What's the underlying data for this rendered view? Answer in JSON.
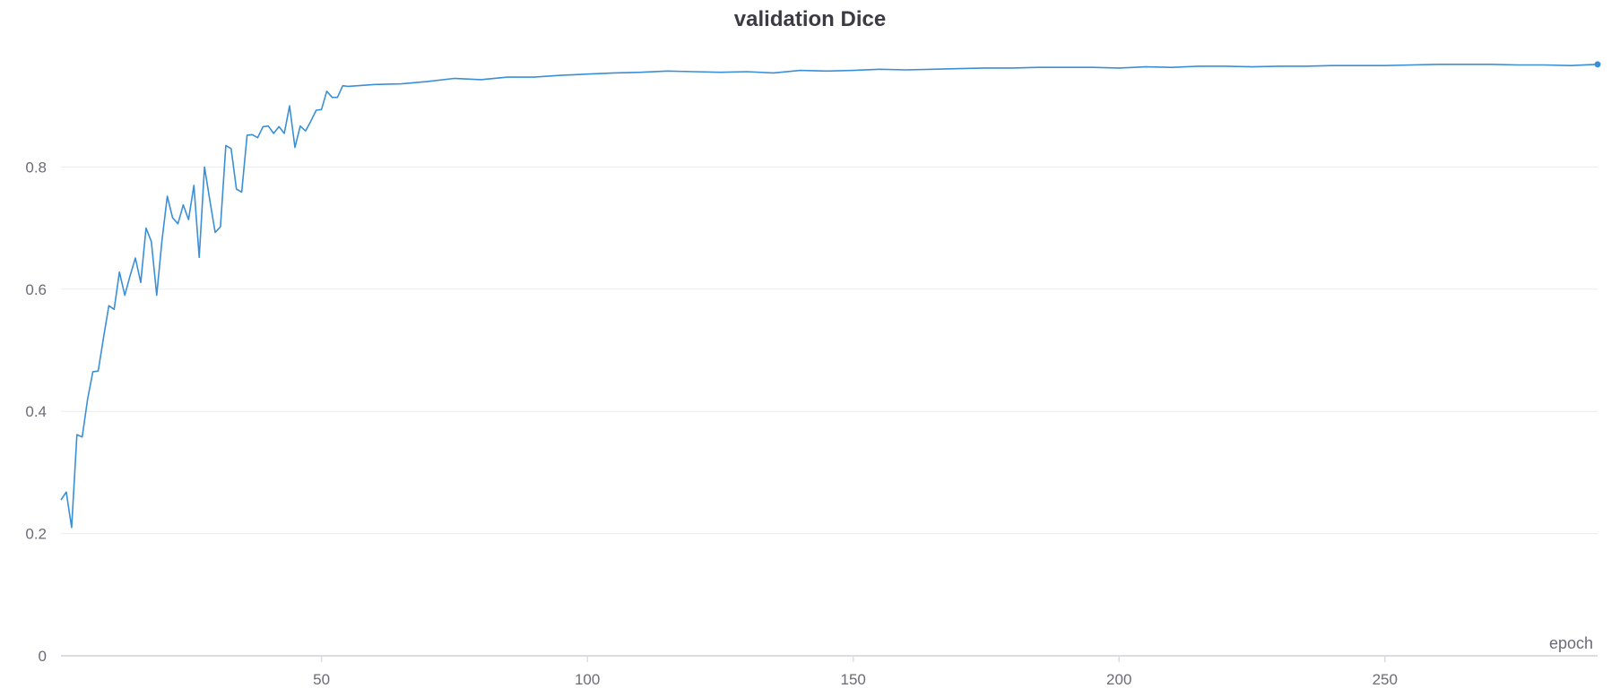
{
  "chart_data": {
    "type": "line",
    "title": "validation Dice",
    "xlabel": "epoch",
    "ylabel": "",
    "xlim": [
      1,
      290
    ],
    "ylim": [
      0,
      1.0
    ],
    "x_ticks": [
      50,
      100,
      150,
      200,
      250
    ],
    "y_ticks": [
      0,
      0.2,
      0.4,
      0.6,
      0.8
    ],
    "y_tick_labels": [
      "0",
      "0.2",
      "0.4",
      "0.6",
      "0.8"
    ],
    "grid": "horizontal",
    "line_color": "#3a8fd6",
    "series": [
      {
        "x": [
          1,
          2,
          3,
          4,
          5,
          6,
          7,
          8,
          9,
          10,
          11,
          12,
          13,
          14,
          15,
          16,
          17,
          18,
          19,
          20,
          21,
          22,
          23,
          24,
          25,
          26,
          27,
          28,
          29,
          30,
          31,
          32,
          33,
          34,
          35,
          36,
          37,
          38,
          39,
          40,
          41,
          42,
          43,
          44,
          45,
          46,
          47,
          48,
          49,
          50,
          51,
          52,
          53,
          54,
          55,
          60,
          65,
          70,
          75,
          80,
          85,
          90,
          95,
          100,
          105,
          110,
          115,
          120,
          125,
          130,
          135,
          140,
          145,
          150,
          155,
          160,
          165,
          170,
          175,
          180,
          185,
          190,
          195,
          200,
          205,
          210,
          215,
          220,
          225,
          230,
          235,
          240,
          245,
          250,
          255,
          260,
          265,
          270,
          275,
          280,
          285,
          290
        ],
        "values": [
          0.255,
          0.268,
          0.21,
          0.362,
          0.358,
          0.42,
          0.465,
          0.466,
          0.52,
          0.573,
          0.567,
          0.628,
          0.59,
          0.622,
          0.651,
          0.611,
          0.7,
          0.678,
          0.59,
          0.68,
          0.752,
          0.717,
          0.707,
          0.738,
          0.714,
          0.77,
          0.652,
          0.8,
          0.745,
          0.693,
          0.702,
          0.835,
          0.83,
          0.764,
          0.759,
          0.852,
          0.853,
          0.848,
          0.866,
          0.867,
          0.855,
          0.866,
          0.855,
          0.9,
          0.832,
          0.867,
          0.859,
          0.875,
          0.893,
          0.894,
          0.924,
          0.914,
          0.914,
          0.933,
          0.932,
          0.935,
          0.936,
          0.94,
          0.945,
          0.943,
          0.947,
          0.947,
          0.95,
          0.952,
          0.954,
          0.955,
          0.957,
          0.956,
          0.955,
          0.956,
          0.954,
          0.958,
          0.957,
          0.958,
          0.96,
          0.959,
          0.96,
          0.961,
          0.962,
          0.962,
          0.963,
          0.963,
          0.963,
          0.962,
          0.964,
          0.963,
          0.965,
          0.965,
          0.964,
          0.965,
          0.965,
          0.966,
          0.966,
          0.966,
          0.967,
          0.968,
          0.968,
          0.968,
          0.967,
          0.967,
          0.966,
          0.968
        ]
      }
    ]
  }
}
